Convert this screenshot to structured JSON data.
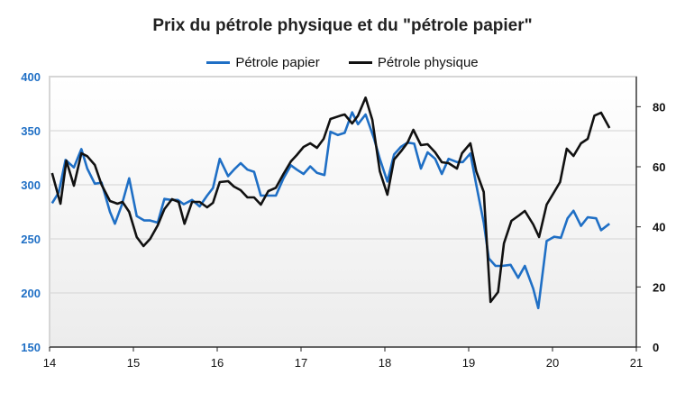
{
  "chart_data": {
    "type": "line",
    "title": "Prix du pétrole physique et du \"pétrole papier\"",
    "x_ticks": [
      "14",
      "15",
      "16",
      "17",
      "18",
      "19",
      "20",
      "21"
    ],
    "xlim": [
      14,
      21
    ],
    "y_left": {
      "ticks": [
        "150",
        "200",
        "250",
        "300",
        "350",
        "400"
      ],
      "lim": [
        150,
        400
      ],
      "color": "#1f6fc5"
    },
    "y_right": {
      "ticks": [
        "0",
        "20",
        "40",
        "60",
        "80"
      ],
      "lim": [
        0,
        90
      ],
      "color": "#111111"
    },
    "grid": true,
    "legend_position": "top-center",
    "series": [
      {
        "name": "Pétrole papier",
        "axis": "left",
        "color": "#1f6fc5",
        "points": [
          [
            14.03,
            283
          ],
          [
            14.11,
            293
          ],
          [
            14.19,
            323
          ],
          [
            14.29,
            316
          ],
          [
            14.38,
            333
          ],
          [
            14.45,
            315
          ],
          [
            14.54,
            301
          ],
          [
            14.62,
            302
          ],
          [
            14.72,
            275
          ],
          [
            14.78,
            264
          ],
          [
            14.86,
            281
          ],
          [
            14.95,
            306
          ],
          [
            15.04,
            271
          ],
          [
            15.13,
            267
          ],
          [
            15.2,
            267
          ],
          [
            15.29,
            265
          ],
          [
            15.37,
            287
          ],
          [
            15.45,
            286
          ],
          [
            15.53,
            286
          ],
          [
            15.6,
            282
          ],
          [
            15.7,
            286
          ],
          [
            15.79,
            280
          ],
          [
            15.88,
            290
          ],
          [
            15.95,
            297
          ],
          [
            16.03,
            324
          ],
          [
            16.13,
            308
          ],
          [
            16.2,
            314
          ],
          [
            16.28,
            320
          ],
          [
            16.36,
            314
          ],
          [
            16.44,
            312
          ],
          [
            16.52,
            290
          ],
          [
            16.61,
            290
          ],
          [
            16.7,
            290
          ],
          [
            16.79,
            306
          ],
          [
            16.88,
            318
          ],
          [
            16.95,
            314
          ],
          [
            17.03,
            310
          ],
          [
            17.11,
            317
          ],
          [
            17.19,
            311
          ],
          [
            17.28,
            309
          ],
          [
            17.35,
            349
          ],
          [
            17.44,
            346
          ],
          [
            17.52,
            348
          ],
          [
            17.61,
            367
          ],
          [
            17.68,
            356
          ],
          [
            17.77,
            365
          ],
          [
            17.87,
            343
          ],
          [
            17.94,
            324
          ],
          [
            18.03,
            303
          ],
          [
            18.11,
            328
          ],
          [
            18.19,
            335
          ],
          [
            18.27,
            339
          ],
          [
            18.35,
            338
          ],
          [
            18.43,
            315
          ],
          [
            18.51,
            330
          ],
          [
            18.6,
            324
          ],
          [
            18.68,
            310
          ],
          [
            18.76,
            324
          ],
          [
            18.86,
            321
          ],
          [
            18.93,
            321
          ],
          [
            19.02,
            329
          ],
          [
            19.09,
            300
          ],
          [
            19.18,
            265
          ],
          [
            19.24,
            232
          ],
          [
            19.32,
            225
          ],
          [
            19.4,
            225
          ],
          [
            19.5,
            226
          ],
          [
            19.59,
            214
          ],
          [
            19.67,
            225
          ],
          [
            19.77,
            204
          ],
          [
            19.83,
            186
          ],
          [
            19.93,
            248
          ],
          [
            20.02,
            252
          ],
          [
            20.1,
            251
          ],
          [
            20.18,
            269
          ],
          [
            20.25,
            276
          ],
          [
            20.34,
            262
          ],
          [
            20.42,
            270
          ],
          [
            20.52,
            269
          ],
          [
            20.58,
            258
          ],
          [
            20.68,
            264
          ]
        ]
      },
      {
        "name": "Pétrole physique",
        "axis": "right",
        "color": "#111111",
        "points": [
          [
            14.03,
            57.9
          ],
          [
            14.13,
            47.7
          ],
          [
            14.2,
            62
          ],
          [
            14.29,
            53.7
          ],
          [
            14.38,
            64.5
          ],
          [
            14.45,
            63.5
          ],
          [
            14.54,
            60.6
          ],
          [
            14.62,
            54
          ],
          [
            14.72,
            48.6
          ],
          [
            14.81,
            47.7
          ],
          [
            14.87,
            48.3
          ],
          [
            14.95,
            45
          ],
          [
            15.04,
            36.6
          ],
          [
            15.12,
            33.6
          ],
          [
            15.2,
            36
          ],
          [
            15.29,
            40.5
          ],
          [
            15.37,
            45.9
          ],
          [
            15.46,
            49.2
          ],
          [
            15.54,
            48.3
          ],
          [
            15.61,
            41
          ],
          [
            15.7,
            48.3
          ],
          [
            15.79,
            48.3
          ],
          [
            15.88,
            46.5
          ],
          [
            15.95,
            48
          ],
          [
            16.03,
            54.9
          ],
          [
            16.13,
            55.2
          ],
          [
            16.2,
            53.4
          ],
          [
            16.28,
            52.2
          ],
          [
            16.36,
            49.8
          ],
          [
            16.44,
            49.8
          ],
          [
            16.52,
            47.4
          ],
          [
            16.61,
            51.9
          ],
          [
            16.7,
            53
          ],
          [
            16.79,
            57.6
          ],
          [
            16.88,
            61.8
          ],
          [
            16.95,
            63.9
          ],
          [
            17.03,
            66.6
          ],
          [
            17.11,
            67.8
          ],
          [
            17.19,
            66.3
          ],
          [
            17.27,
            69.3
          ],
          [
            17.35,
            75.9
          ],
          [
            17.47,
            77
          ],
          [
            17.52,
            77.4
          ],
          [
            17.61,
            74.4
          ],
          [
            17.68,
            77
          ],
          [
            17.77,
            83
          ],
          [
            17.85,
            75.6
          ],
          [
            17.94,
            58.5
          ],
          [
            18.03,
            50.7
          ],
          [
            18.11,
            62.4
          ],
          [
            18.2,
            65.4
          ],
          [
            18.27,
            68
          ],
          [
            18.34,
            72.3
          ],
          [
            18.43,
            67.2
          ],
          [
            18.51,
            67.5
          ],
          [
            18.6,
            64.8
          ],
          [
            18.68,
            61.5
          ],
          [
            18.76,
            61.2
          ],
          [
            18.86,
            59.4
          ],
          [
            18.92,
            64.5
          ],
          [
            19.02,
            67.8
          ],
          [
            19.09,
            58.5
          ],
          [
            19.18,
            51.6
          ],
          [
            19.26,
            15
          ],
          [
            19.35,
            18.3
          ],
          [
            19.42,
            34.5
          ],
          [
            19.51,
            42
          ],
          [
            19.6,
            43.8
          ],
          [
            19.67,
            45.3
          ],
          [
            19.77,
            40.8
          ],
          [
            19.84,
            36.6
          ],
          [
            19.93,
            47.4
          ],
          [
            20.02,
            51.6
          ],
          [
            20.09,
            54.9
          ],
          [
            20.17,
            66
          ],
          [
            20.25,
            63.6
          ],
          [
            20.34,
            67.8
          ],
          [
            20.42,
            69.3
          ],
          [
            20.5,
            77
          ],
          [
            20.58,
            78
          ],
          [
            20.68,
            72.9
          ]
        ]
      }
    ]
  }
}
